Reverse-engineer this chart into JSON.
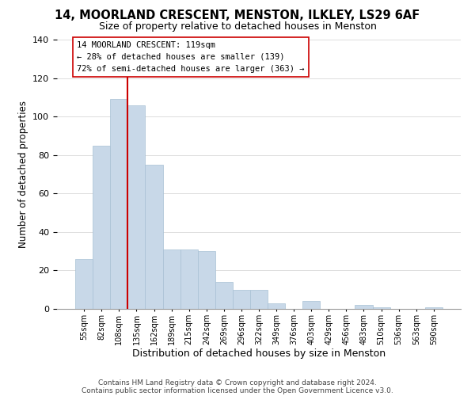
{
  "title": "14, MOORLAND CRESCENT, MENSTON, ILKLEY, LS29 6AF",
  "subtitle": "Size of property relative to detached houses in Menston",
  "xlabel": "Distribution of detached houses by size in Menston",
  "ylabel": "Number of detached properties",
  "footer_line1": "Contains HM Land Registry data © Crown copyright and database right 2024.",
  "footer_line2": "Contains public sector information licensed under the Open Government Licence v3.0.",
  "bin_labels": [
    "55sqm",
    "82sqm",
    "108sqm",
    "135sqm",
    "162sqm",
    "189sqm",
    "215sqm",
    "242sqm",
    "269sqm",
    "296sqm",
    "322sqm",
    "349sqm",
    "376sqm",
    "403sqm",
    "429sqm",
    "456sqm",
    "483sqm",
    "510sqm",
    "536sqm",
    "563sqm",
    "590sqm"
  ],
  "bar_heights": [
    26,
    85,
    109,
    106,
    75,
    31,
    31,
    30,
    14,
    10,
    10,
    3,
    0,
    4,
    0,
    0,
    2,
    1,
    0,
    0,
    1
  ],
  "bar_color": "#c8d8e8",
  "bar_edge_color": "#a8c0d4",
  "vline_color": "#cc0000",
  "vline_x": 2.5,
  "annotation_title": "14 MOORLAND CRESCENT: 119sqm",
  "annotation_line2": "← 28% of detached houses are smaller (139)",
  "annotation_line3": "72% of semi-detached houses are larger (363) →",
  "annotation_box_color": "#ffffff",
  "annotation_box_edge": "#cc0000",
  "ylim": [
    0,
    140
  ],
  "yticks": [
    0,
    20,
    40,
    60,
    80,
    100,
    120,
    140
  ],
  "background_color": "#ffffff",
  "grid_color": "#dddddd"
}
